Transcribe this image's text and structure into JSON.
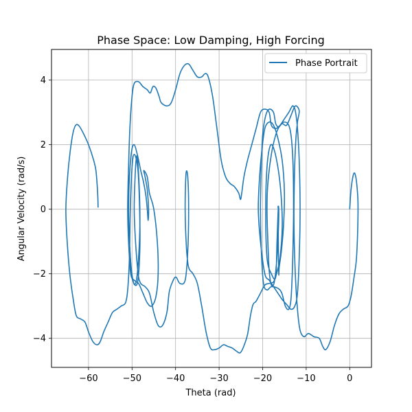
{
  "chart_data": {
    "type": "line",
    "title": "Phase Space: Low Damping, High Forcing",
    "xlabel": "Theta (rad)",
    "ylabel": "Angular Velocity (rad/s)",
    "xlim": [
      -68.5,
      5
    ],
    "ylim": [
      -4.9,
      4.95
    ],
    "xticks": [
      -60,
      -50,
      -40,
      -30,
      -20,
      -10,
      0
    ],
    "yticks": [
      -4,
      -2,
      0,
      2,
      4
    ],
    "xtick_labels": [
      "−60",
      "−50",
      "−40",
      "−30",
      "−20",
      "−10",
      "0"
    ],
    "ytick_labels": [
      "−4",
      "−2",
      "0",
      "2",
      "4"
    ],
    "grid": true,
    "legend_position": "top-right",
    "series": [
      {
        "name": "Phase Portrait",
        "color": "#1f77b4",
        "points": [
          [
            0,
            0
          ],
          [
            0.3,
            0.6
          ],
          [
            0.8,
            1.05
          ],
          [
            1.2,
            1.1
          ],
          [
            1.6,
            0.8
          ],
          [
            1.9,
            0.2
          ],
          [
            1.8,
            -0.8
          ],
          [
            1.5,
            -1.6
          ],
          [
            1.0,
            -2.1
          ],
          [
            0.3,
            -2.7
          ],
          [
            -0.4,
            -3.0
          ],
          [
            -1.5,
            -3.1
          ],
          [
            -2.5,
            -3.25
          ],
          [
            -3.5,
            -3.6
          ],
          [
            -4.5,
            -4.1
          ],
          [
            -5.5,
            -4.35
          ],
          [
            -6.2,
            -4.25
          ],
          [
            -7.0,
            -4.0
          ],
          [
            -8.2,
            -3.95
          ],
          [
            -9.5,
            -3.85
          ],
          [
            -10.5,
            -3.95
          ],
          [
            -11.4,
            -3.75
          ],
          [
            -12.0,
            -3.1
          ],
          [
            -12.5,
            -2.0
          ],
          [
            -12.8,
            -0.5
          ],
          [
            -12.7,
            1.0
          ],
          [
            -12.4,
            2.1
          ],
          [
            -12.0,
            2.7
          ],
          [
            -11.6,
            3.05
          ],
          [
            -12.5,
            3.2
          ],
          [
            -13.5,
            2.9
          ],
          [
            -14.5,
            2.6
          ],
          [
            -15.5,
            2.65
          ],
          [
            -16.3,
            2.55
          ],
          [
            -17.0,
            2.65
          ],
          [
            -17.5,
            3.0
          ],
          [
            -18.5,
            3.1
          ],
          [
            -19.3,
            2.9
          ],
          [
            -20.0,
            2.3
          ],
          [
            -20.3,
            1.3
          ],
          [
            -20.5,
            0.0
          ],
          [
            -20.3,
            -1.3
          ],
          [
            -19.8,
            -2.3
          ],
          [
            -19.0,
            -2.5
          ],
          [
            -18.0,
            -2.4
          ],
          [
            -16.5,
            -2.45
          ],
          [
            -15.6,
            -2.6
          ],
          [
            -14.8,
            -3.0
          ],
          [
            -14.0,
            -3.1
          ],
          [
            -13.5,
            -2.8
          ],
          [
            -13.2,
            -2.0
          ],
          [
            -13.0,
            -1.0
          ],
          [
            -12.9,
            0.0
          ],
          [
            -13.0,
            1.3
          ],
          [
            -13.4,
            2.2
          ],
          [
            -14.0,
            2.6
          ],
          [
            -15.0,
            2.7
          ],
          [
            -16.0,
            2.6
          ],
          [
            -17.0,
            2.3
          ],
          [
            -18.0,
            1.7
          ],
          [
            -18.8,
            0.8
          ],
          [
            -19.0,
            0.0
          ],
          [
            -18.8,
            -1.0
          ],
          [
            -18.5,
            -1.9
          ],
          [
            -18.0,
            -2.35
          ],
          [
            -17.4,
            -2.3
          ],
          [
            -16.9,
            -1.8
          ],
          [
            -16.5,
            -1.0
          ],
          [
            -16.3,
            -0.2
          ],
          [
            -16.4,
            0.05
          ],
          [
            -16.7,
            -1.0
          ],
          [
            -17.0,
            -2.1
          ],
          [
            -18.0,
            -2.0
          ],
          [
            -19.0,
            -1.5
          ],
          [
            -19.3,
            0.0
          ],
          [
            -19.0,
            1.3
          ],
          [
            -18.3,
            1.95
          ],
          [
            -17.5,
            1.9
          ],
          [
            -16.5,
            1.3
          ],
          [
            -15.8,
            0.5
          ],
          [
            -15.5,
            -0.5
          ],
          [
            -16.0,
            -1.5
          ],
          [
            -16.8,
            -2.0
          ],
          [
            -17.5,
            -2.25
          ],
          [
            -18.5,
            -2.3
          ],
          [
            -19.5,
            -2.35
          ],
          [
            -20.5,
            -2.6
          ],
          [
            -21.5,
            -2.85
          ],
          [
            -22.2,
            -2.95
          ],
          [
            -22.8,
            -3.3
          ],
          [
            -23.5,
            -3.9
          ],
          [
            -24.5,
            -4.3
          ],
          [
            -25.2,
            -4.45
          ],
          [
            -26.0,
            -4.4
          ],
          [
            -27.0,
            -4.3
          ],
          [
            -28.0,
            -4.25
          ],
          [
            -29.0,
            -4.2
          ],
          [
            -30.0,
            -4.3
          ],
          [
            -31.0,
            -4.35
          ],
          [
            -32.0,
            -4.3
          ],
          [
            -33.0,
            -3.8
          ],
          [
            -34.0,
            -3.0
          ],
          [
            -35.0,
            -2.3
          ],
          [
            -36.0,
            -2.0
          ],
          [
            -37.0,
            -1.8
          ],
          [
            -37.5,
            -1.2
          ],
          [
            -37.8,
            0.0
          ],
          [
            -37.6,
            1.1
          ],
          [
            -37.2,
            1.0
          ],
          [
            -37.0,
            0.0
          ],
          [
            -37.2,
            -1.3
          ],
          [
            -37.8,
            -2.2
          ],
          [
            -39.0,
            -2.3
          ],
          [
            -40.0,
            -2.1
          ],
          [
            -41.0,
            -2.35
          ],
          [
            -41.5,
            -2.6
          ],
          [
            -42.0,
            -3.2
          ],
          [
            -43.0,
            -3.6
          ],
          [
            -44.0,
            -3.6
          ],
          [
            -45.0,
            -3.2
          ],
          [
            -46.0,
            -2.6
          ],
          [
            -47.0,
            -2.4
          ],
          [
            -48.0,
            -2.3
          ],
          [
            -48.6,
            -2.0
          ],
          [
            -49.2,
            -1.0
          ],
          [
            -49.5,
            0.0
          ],
          [
            -49.3,
            1.0
          ],
          [
            -49.0,
            1.6
          ],
          [
            -48.7,
            1.5
          ],
          [
            -48.3,
            0.5
          ],
          [
            -48.2,
            -0.5
          ],
          [
            -48.5,
            -1.5
          ],
          [
            -49.0,
            -2.2
          ],
          [
            -49.6,
            -2.3
          ],
          [
            -50.2,
            -1.8
          ],
          [
            -50.6,
            -1.0
          ],
          [
            -50.8,
            0.0
          ],
          [
            -50.6,
            1.0
          ],
          [
            -50.1,
            1.8
          ],
          [
            -49.5,
            2.0
          ],
          [
            -48.8,
            1.7
          ],
          [
            -48.0,
            1.2
          ],
          [
            -47.3,
            0.8
          ],
          [
            -46.8,
            0.4
          ],
          [
            -46.5,
            0.0
          ],
          [
            -46.3,
            -0.35
          ],
          [
            -46.2,
            0.0
          ],
          [
            -46.5,
            0.6
          ],
          [
            -47.0,
            1.0
          ],
          [
            -47.3,
            1.2
          ],
          [
            -46.5,
            1.0
          ],
          [
            -46.0,
            0.5
          ],
          [
            -45.0,
            0.0
          ],
          [
            -44.2,
            -1.0
          ],
          [
            -44.0,
            -2.0
          ],
          [
            -44.5,
            -2.7
          ],
          [
            -45.5,
            -3.0
          ],
          [
            -46.5,
            -2.9
          ],
          [
            -47.5,
            -2.6
          ],
          [
            -48.5,
            -2.3
          ],
          [
            -49.5,
            -2.2
          ],
          [
            -50.3,
            -2.0
          ],
          [
            -50.8,
            -1.0
          ],
          [
            -51.0,
            0.0
          ],
          [
            -50.8,
            1.3
          ],
          [
            -50.5,
            2.5
          ],
          [
            -50.0,
            3.5
          ],
          [
            -49.5,
            3.9
          ],
          [
            -48.5,
            3.95
          ],
          [
            -47.5,
            3.8
          ],
          [
            -46.5,
            3.7
          ],
          [
            -45.8,
            3.6
          ],
          [
            -45.2,
            3.8
          ],
          [
            -44.5,
            3.75
          ],
          [
            -43.8,
            3.5
          ],
          [
            -43.3,
            3.3
          ],
          [
            -42.0,
            3.2
          ],
          [
            -41.0,
            3.3
          ],
          [
            -40.0,
            3.7
          ],
          [
            -39.0,
            4.2
          ],
          [
            -38.0,
            4.45
          ],
          [
            -37.0,
            4.5
          ],
          [
            -36.0,
            4.3
          ],
          [
            -35.0,
            4.1
          ],
          [
            -34.0,
            4.1
          ],
          [
            -33.2,
            4.2
          ],
          [
            -32.5,
            4.1
          ],
          [
            -31.5,
            3.5
          ],
          [
            -30.5,
            2.5
          ],
          [
            -29.5,
            1.5
          ],
          [
            -28.5,
            1.0
          ],
          [
            -27.5,
            0.8
          ],
          [
            -26.5,
            0.7
          ],
          [
            -25.5,
            0.5
          ],
          [
            -25.1,
            0.3
          ],
          [
            -24.8,
            0.5
          ],
          [
            -24.3,
            1.0
          ],
          [
            -23.5,
            1.5
          ],
          [
            -22.5,
            2.0
          ],
          [
            -21.5,
            2.5
          ],
          [
            -20.5,
            3.0
          ],
          [
            -19.5,
            3.1
          ],
          [
            -18.5,
            3.0
          ],
          [
            -18.0,
            2.6
          ],
          [
            -17.0,
            2.5
          ],
          [
            -16.0,
            2.6
          ],
          [
            -15.0,
            2.8
          ],
          [
            -14.0,
            3.0
          ],
          [
            -13.4,
            3.15
          ],
          [
            -13.0,
            3.2
          ],
          [
            -12.5,
            3.05
          ],
          [
            -12.0,
            2.5
          ],
          [
            -11.6,
            1.5
          ],
          [
            -11.4,
            0.0
          ],
          [
            -11.6,
            -1.5
          ],
          [
            -12.0,
            -2.6
          ],
          [
            -12.6,
            -3.0
          ],
          [
            -13.5,
            -3.1
          ],
          [
            -14.5,
            -2.95
          ],
          [
            -15.5,
            -2.8
          ],
          [
            -16.5,
            -2.6
          ],
          [
            -17.5,
            -2.4
          ],
          [
            -18.5,
            -2.2
          ],
          [
            -19.5,
            -2.0
          ],
          [
            -20.5,
            -1.0
          ],
          [
            -21.0,
            0.0
          ],
          [
            -20.7,
            1.0
          ],
          [
            -20.2,
            1.8
          ],
          [
            -19.5,
            2.5
          ],
          [
            -18.5,
            2.7
          ],
          [
            -17.5,
            2.6
          ],
          [
            -16.5,
            2.2
          ],
          [
            -15.5,
            1.5
          ],
          [
            -15.0,
            0.5
          ],
          [
            -15.2,
            -0.5
          ],
          [
            -15.7,
            -1.3
          ],
          [
            -16.2,
            -1.8
          ],
          [
            -16.3,
            -2.0
          ],
          [
            -16.4,
            -1.0
          ],
          [
            -16.4,
            0.0
          ],
          [
            -16.5,
            0.05
          ]
        ]
      }
    ],
    "secondary_segment": [
      [
        -57.8,
        0.05
      ],
      [
        -57.9,
        0.5
      ],
      [
        -58.3,
        1.2
      ],
      [
        -59.0,
        1.6
      ],
      [
        -60.0,
        2.0
      ],
      [
        -61.0,
        2.3
      ],
      [
        -62.0,
        2.55
      ],
      [
        -62.8,
        2.62
      ],
      [
        -63.5,
        2.4
      ],
      [
        -64.2,
        1.8
      ],
      [
        -64.8,
        1.0
      ],
      [
        -65.2,
        0.0
      ],
      [
        -64.9,
        -1.0
      ],
      [
        -64.3,
        -2.0
      ],
      [
        -63.5,
        -2.8
      ],
      [
        -62.8,
        -3.3
      ],
      [
        -61.8,
        -3.4
      ],
      [
        -60.8,
        -3.5
      ],
      [
        -60.0,
        -3.8
      ],
      [
        -59.0,
        -4.1
      ],
      [
        -58.0,
        -4.2
      ],
      [
        -57.3,
        -4.1
      ],
      [
        -56.5,
        -3.8
      ],
      [
        -55.5,
        -3.5
      ],
      [
        -54.5,
        -3.2
      ],
      [
        -53.5,
        -3.1
      ],
      [
        -52.5,
        -3.0
      ],
      [
        -51.5,
        -2.9
      ],
      [
        -51.0,
        -2.5
      ],
      [
        -50.6,
        -1.5
      ],
      [
        -50.4,
        0.0
      ],
      [
        -50.0,
        1.3
      ],
      [
        -49.5,
        1.7
      ],
      [
        -48.7,
        1.3
      ],
      [
        -48.3,
        0.2
      ],
      [
        -48.2,
        -1.2
      ],
      [
        -48.8,
        -2.3
      ],
      [
        -50.0,
        -2.1
      ],
      [
        -50.6,
        -1.0
      ]
    ]
  }
}
